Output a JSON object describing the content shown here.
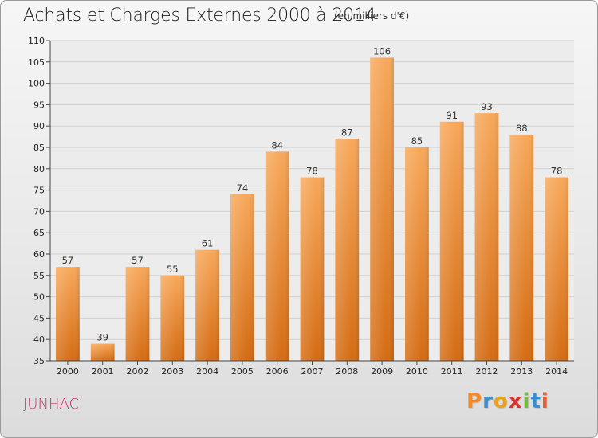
{
  "header": {
    "title": "Achats et Charges Externes 2000 à 2014",
    "subtitle": "(en milliers d'€)"
  },
  "footer": {
    "commune": "JUNHAC",
    "logo_letters": [
      "P",
      "r",
      "o",
      "x",
      "i",
      "t",
      "i"
    ],
    "logo_colors": [
      "#f28c28",
      "#3a8fd0",
      "#e8a020",
      "#d8342c",
      "#7ab83a",
      "#3a8fd0",
      "#e06030"
    ]
  },
  "chart_data": {
    "type": "bar",
    "title": "Achats et Charges Externes 2000 à 2014",
    "subtitle": "(en milliers d'€)",
    "categories": [
      "2000",
      "2001",
      "2002",
      "2003",
      "2004",
      "2005",
      "2006",
      "2007",
      "2008",
      "2009",
      "2010",
      "2011",
      "2012",
      "2013",
      "2014"
    ],
    "values": [
      57,
      39,
      57,
      55,
      61,
      74,
      84,
      78,
      87,
      106,
      85,
      91,
      93,
      88,
      78
    ],
    "ylim": [
      35,
      110
    ],
    "yticks": [
      35,
      40,
      45,
      50,
      55,
      60,
      65,
      70,
      75,
      80,
      85,
      90,
      95,
      100,
      105,
      110
    ],
    "xlabel": "",
    "ylabel": "",
    "grid": true,
    "bar_color_top": "#f7a85a",
    "bar_color_bottom": "#d46b12"
  }
}
